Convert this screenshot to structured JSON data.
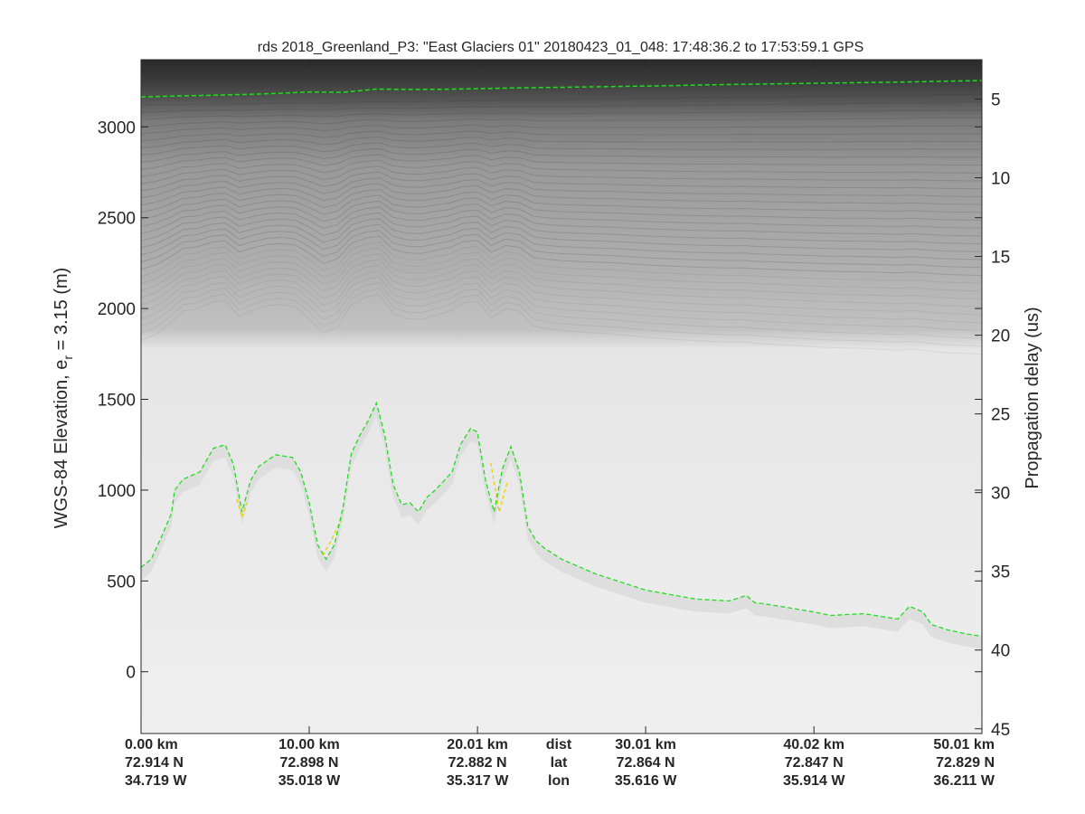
{
  "chart_data": {
    "type": "heatmap",
    "title": "rds 2018_Greenland_P3: \"East Glaciers 01\"  20180423_01_048: 17:48:36.2 to 17:53:59.1 GPS",
    "ylabel_left": "WGS-84 Elevation, e",
    "ylabel_left_sub": "r",
    "ylabel_left_suffix": " = 3.15 (m)",
    "ylabel_right": "Propagation delay (us)",
    "ylim": [
      -340,
      3370
    ],
    "y_ticks": [
      0,
      500,
      1000,
      1500,
      2000,
      2500,
      3000
    ],
    "y_tick_labels": [
      "0",
      "500",
      "1000",
      "1500",
      "2000",
      "2500",
      "3000"
    ],
    "delay_range": [
      2.5,
      45.3
    ],
    "delay_ticks": [
      5,
      10,
      15,
      20,
      25,
      30,
      35,
      40,
      45
    ],
    "delay_tick_labels": [
      "5",
      "10",
      "15",
      "20",
      "25",
      "30",
      "35",
      "40",
      "45"
    ],
    "xlim": [
      0,
      50.01
    ],
    "x_ticks": [
      0,
      10.0,
      20.01,
      30.01,
      40.02,
      50.01
    ],
    "x_row_labels": [
      "dist",
      "lat",
      "lon"
    ],
    "x_tick_labels": [
      [
        "0.00 km",
        "72.914 N",
        "34.719 W"
      ],
      [
        "10.00 km",
        "72.898 N",
        "35.018 W"
      ],
      [
        "20.01 km",
        "72.882 N",
        "35.317 W"
      ],
      [
        "30.01 km",
        "72.864 N",
        "35.616 W"
      ],
      [
        "40.02 km",
        "72.847 N",
        "35.914 W"
      ],
      [
        "50.01 km",
        "72.829 N",
        "36.211 W"
      ]
    ],
    "grid": false,
    "surface_line": {
      "color": "#22dd22",
      "x": [
        0,
        2.0,
        5.0,
        8.0,
        10.0,
        12.0,
        14.0,
        16.0,
        18.0,
        20.0,
        22.0,
        25.0,
        28.0,
        31.0,
        34.0,
        37.0,
        40.0,
        43.0,
        46.0,
        48.0,
        50.01
      ],
      "y": [
        3165,
        3170,
        3176,
        3184,
        3192,
        3190,
        3208,
        3206,
        3207,
        3210,
        3214,
        3218,
        3222,
        3226,
        3232,
        3236,
        3240,
        3244,
        3248,
        3252,
        3255
      ]
    },
    "bed_line": {
      "color": "#22dd22",
      "x": [
        0,
        0.6,
        1.2,
        1.8,
        2.0,
        2.5,
        3.5,
        4.3,
        5.0,
        5.5,
        6.0,
        6.5,
        7.0,
        8.0,
        9.0,
        9.5,
        10.0,
        10.5,
        11.0,
        11.5,
        12.0,
        12.5,
        13.0,
        13.5,
        14.0,
        14.5,
        15.0,
        15.5,
        16.0,
        16.5,
        17.0,
        17.5,
        18.0,
        18.5,
        19.0,
        19.6,
        20.0,
        20.5,
        21.0,
        21.5,
        22.0,
        22.5,
        23.0,
        23.5,
        24.0,
        25.0,
        27.0,
        30.0,
        33.0,
        35.0,
        36.0,
        36.5,
        37.0,
        38.0,
        40.0,
        41.0,
        43.0,
        45.0,
        45.7,
        46.5,
        47.0,
        48.0,
        49.0,
        50.01
      ],
      "y": [
        575,
        620,
        740,
        870,
        1000,
        1060,
        1100,
        1230,
        1250,
        1140,
        880,
        1050,
        1130,
        1195,
        1180,
        1100,
        930,
        700,
        620,
        700,
        900,
        1200,
        1300,
        1380,
        1480,
        1300,
        1030,
        920,
        930,
        880,
        960,
        1000,
        1050,
        1100,
        1250,
        1340,
        1320,
        1050,
        880,
        1120,
        1240,
        1100,
        800,
        720,
        680,
        620,
        540,
        450,
        400,
        390,
        420,
        380,
        375,
        360,
        330,
        310,
        320,
        290,
        360,
        330,
        260,
        230,
        210,
        195
      ]
    },
    "bed_alt_line": {
      "color": "#e8d000",
      "x": [
        5.7,
        6.0,
        6.3,
        10.8,
        11.3,
        12.0,
        20.8,
        21.3,
        21.8
      ],
      "y": [
        950,
        850,
        930,
        640,
        720,
        860,
        1150,
        880,
        1050
      ]
    },
    "layers_echogram": true
  }
}
